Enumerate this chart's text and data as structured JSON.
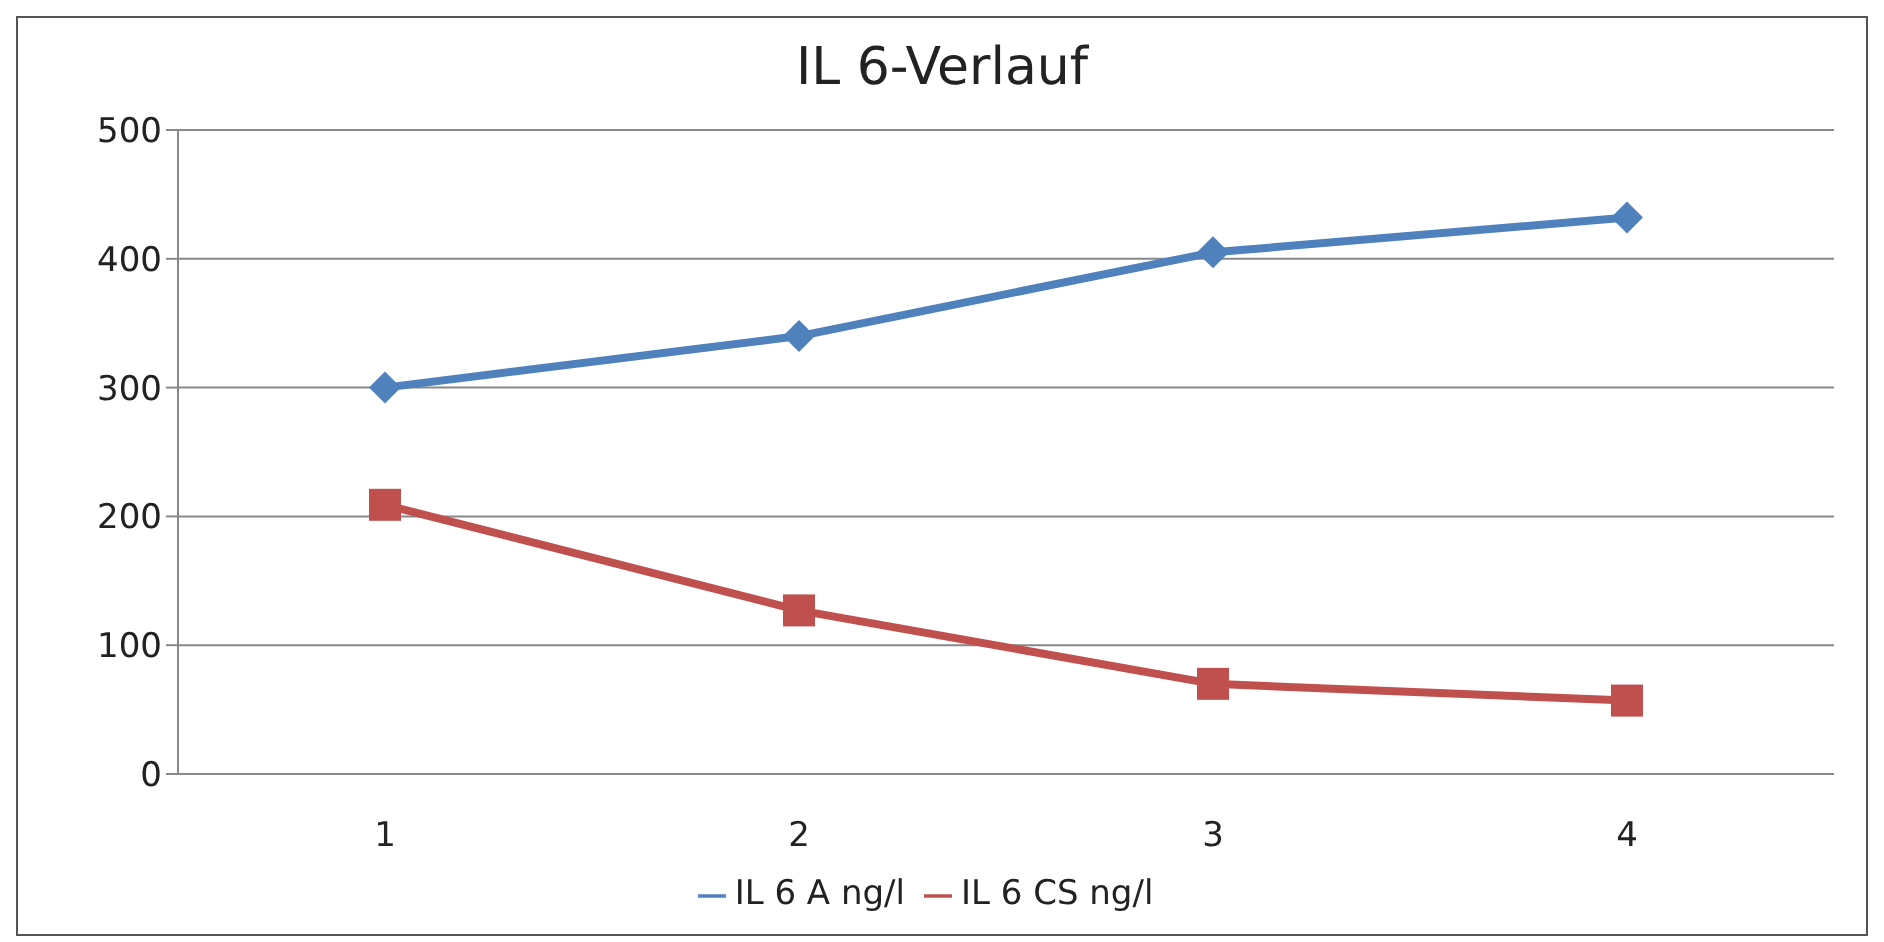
{
  "chart_data": {
    "type": "line",
    "title": "IL 6-Verlauf",
    "categories": [
      "1",
      "2",
      "3",
      "4"
    ],
    "series": [
      {
        "name": "IL 6 A ng/l",
        "color": "#4f81bd",
        "values": [
          300,
          340,
          405,
          432
        ],
        "marker": "diamond"
      },
      {
        "name": "IL 6 CS ng/l",
        "color": "#c0504d",
        "values": [
          209,
          127,
          70,
          57
        ],
        "marker": "square"
      }
    ],
    "ylim": [
      0,
      500
    ],
    "yticks": [
      0,
      100,
      200,
      300,
      400,
      500
    ],
    "grid": "y",
    "legend": "bottom",
    "line_style": "solid"
  }
}
